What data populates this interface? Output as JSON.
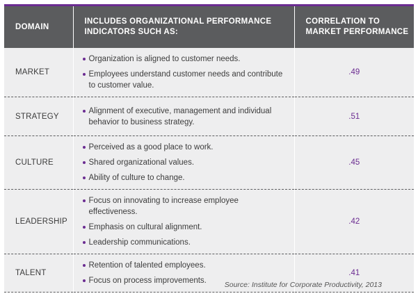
{
  "header": {
    "domain": "DOMAIN",
    "indicators": "INCLUDES ORGANIZATIONAL PERFORMANCE INDICATORS SUCH AS:",
    "correlation": "CORRELATION TO MARKET PERFORMANCE"
  },
  "colors": {
    "accent": "#6b2c91",
    "header_bg": "#5b5c5e",
    "row_bg": "#eeeeef"
  },
  "rows": [
    {
      "domain": "MARKET",
      "indicators": [
        "Organization is aligned to customer needs.",
        "Employees understand customer needs and contribute to customer value."
      ],
      "value": ".49"
    },
    {
      "domain": "STRATEGY",
      "indicators": [
        "Alignment of executive, management and individual behavior to business strategy."
      ],
      "value": ".51"
    },
    {
      "domain": "CULTURE",
      "indicators": [
        "Perceived as a good place to work.",
        "Shared organizational values.",
        "Ability of culture to change."
      ],
      "value": ".45"
    },
    {
      "domain": "LEADERSHIP",
      "indicators": [
        "Focus on innovating to increase employee effectiveness.",
        "Emphasis on cultural alignment.",
        "Leadership communications."
      ],
      "value": ".42"
    },
    {
      "domain": "TALENT",
      "indicators": [
        "Retention of talented employees.",
        "Focus on process improvements."
      ],
      "value": ".41"
    }
  ],
  "source": "Source: Institute for Corporate Productivity, 2013"
}
